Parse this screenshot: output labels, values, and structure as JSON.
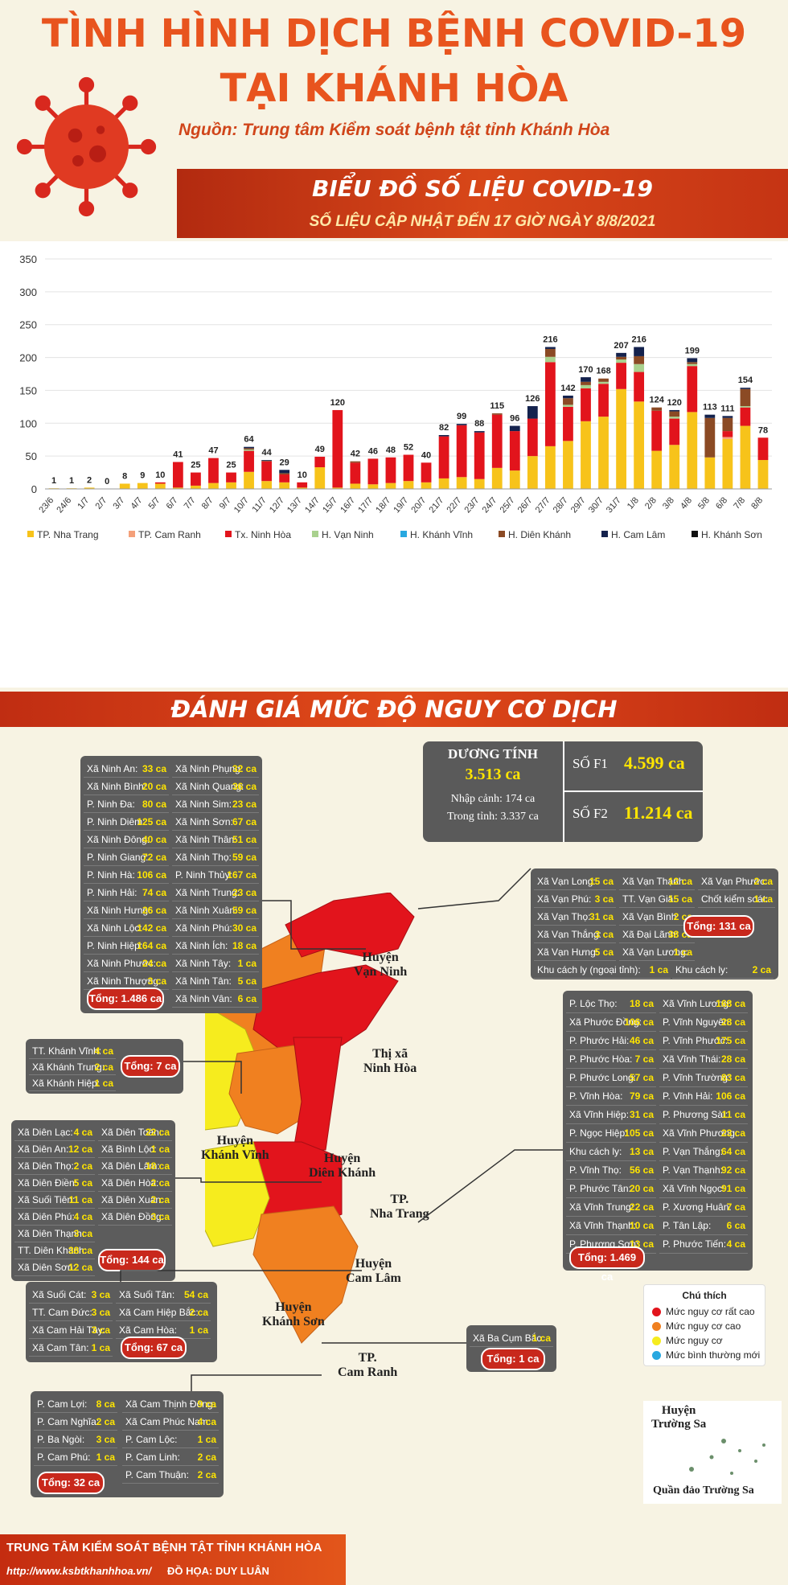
{
  "header": {
    "title_line1": "TÌNH HÌNH DỊCH BỆNH COVID-19",
    "title_line2": "TẠI KHÁNH HÒA",
    "source": "Nguồn: Trung tâm Kiểm soát bệnh tật tỉnh Khánh Hòa"
  },
  "banner": {
    "title": "BIỂU ĐỒ SỐ LIỆU COVID-19",
    "subtitle": "SỐ LIỆU CẬP NHẬT ĐẾN 17 GIỜ NGÀY 8/8/2021"
  },
  "chart_data": {
    "type": "bar",
    "stacked": true,
    "ylim": [
      0,
      350
    ],
    "yticks": [
      0,
      50,
      100,
      150,
      200,
      250,
      300,
      350
    ],
    "grid": true,
    "legend_position": "bottom",
    "categories": [
      "23/6",
      "24/6",
      "1/7",
      "2/7",
      "3/7",
      "4/7",
      "5/7",
      "6/7",
      "7/7",
      "8/7",
      "9/7",
      "10/7",
      "11/7",
      "12/7",
      "13/7",
      "14/7",
      "15/7",
      "16/7",
      "17/7",
      "18/7",
      "19/7",
      "20/7",
      "21/7",
      "22/7",
      "23/7",
      "24/7",
      "25/7",
      "26/7",
      "27/7",
      "28/7",
      "29/7",
      "30/7",
      "31/7",
      "1/8",
      "2/8",
      "3/8",
      "4/8",
      "5/8",
      "6/8",
      "7/8",
      "8/8"
    ],
    "totals": [
      1,
      1,
      2,
      0,
      8,
      9,
      10,
      41,
      25,
      47,
      25,
      64,
      44,
      29,
      10,
      49,
      120,
      42,
      46,
      48,
      52,
      40,
      82,
      99,
      88,
      115,
      96,
      126,
      216,
      142,
      170,
      168,
      207,
      216,
      124,
      120,
      199,
      113,
      111,
      154,
      78
    ],
    "series": [
      {
        "name": "TP. Nha Trang",
        "color": "#f7c31a",
        "values": [
          1,
          1,
          2,
          0,
          8,
          9,
          8,
          2,
          5,
          9,
          10,
          26,
          12,
          10,
          2,
          33,
          2,
          8,
          7,
          9,
          12,
          10,
          16,
          18,
          15,
          32,
          28,
          50,
          65,
          73,
          103,
          110,
          152,
          133,
          58,
          67,
          117,
          48,
          76,
          96,
          44
        ]
      },
      {
        "name": "TP. Cam Ranh",
        "color": "#f4a07a",
        "values": [
          0,
          0,
          0,
          0,
          0,
          0,
          0,
          0,
          0,
          0,
          0,
          0,
          0,
          0,
          0,
          0,
          0,
          0,
          0,
          0,
          0,
          0,
          0,
          0,
          0,
          0,
          0,
          0,
          0,
          0,
          0,
          0,
          0,
          0,
          0,
          0,
          0,
          0,
          3,
          0,
          0
        ]
      },
      {
        "name": "Tx. Ninh Hòa",
        "color": "#e2141c",
        "values": [
          0,
          0,
          0,
          0,
          0,
          0,
          2,
          39,
          20,
          38,
          15,
          32,
          30,
          12,
          8,
          16,
          118,
          32,
          39,
          39,
          40,
          30,
          64,
          79,
          71,
          81,
          60,
          57,
          128,
          52,
          50,
          50,
          40,
          45,
          61,
          40,
          70,
          0,
          9,
          28,
          34
        ]
      },
      {
        "name": "H. Vạn Ninh",
        "color": "#a9d18e",
        "values": [
          0,
          0,
          0,
          0,
          0,
          0,
          0,
          0,
          0,
          0,
          0,
          2,
          0,
          0,
          0,
          0,
          0,
          0,
          0,
          0,
          0,
          0,
          0,
          0,
          0,
          0,
          0,
          0,
          8,
          3,
          5,
          3,
          5,
          12,
          0,
          3,
          3,
          0,
          0,
          2,
          0
        ]
      },
      {
        "name": "H. Khánh Vĩnh",
        "color": "#28a8e0",
        "values": [
          0,
          0,
          0,
          0,
          0,
          0,
          0,
          0,
          0,
          0,
          0,
          0,
          0,
          0,
          0,
          0,
          0,
          0,
          0,
          0,
          0,
          0,
          0,
          0,
          0,
          0,
          0,
          0,
          0,
          0,
          0,
          0,
          0,
          0,
          0,
          0,
          0,
          0,
          0,
          0,
          0
        ]
      },
      {
        "name": "H. Diên Khánh",
        "color": "#8b4a24",
        "values": [
          0,
          0,
          0,
          0,
          0,
          0,
          0,
          0,
          0,
          0,
          0,
          2,
          1,
          2,
          0,
          0,
          0,
          2,
          0,
          0,
          0,
          0,
          0,
          0,
          0,
          2,
          0,
          0,
          12,
          10,
          5,
          5,
          4,
          12,
          5,
          8,
          3,
          60,
          20,
          26,
          0
        ]
      },
      {
        "name": "H. Cam Lâm",
        "color": "#14224d",
        "values": [
          0,
          0,
          0,
          0,
          0,
          0,
          0,
          0,
          0,
          0,
          0,
          2,
          1,
          5,
          0,
          0,
          0,
          0,
          0,
          0,
          0,
          0,
          2,
          2,
          2,
          0,
          8,
          19,
          3,
          4,
          7,
          0,
          6,
          14,
          0,
          2,
          6,
          5,
          3,
          2,
          0
        ]
      },
      {
        "name": "H. Khánh Sơn",
        "color": "#111111",
        "values": [
          0,
          0,
          0,
          0,
          0,
          0,
          0,
          0,
          0,
          0,
          0,
          0,
          0,
          0,
          0,
          0,
          0,
          0,
          0,
          0,
          0,
          0,
          0,
          0,
          0,
          0,
          0,
          0,
          0,
          0,
          0,
          0,
          0,
          0,
          0,
          0,
          0,
          0,
          0,
          0,
          0
        ]
      }
    ]
  },
  "section2_title": "ĐÁNH GIÁ MỨC ĐỘ NGUY CƠ DỊCH",
  "stats": {
    "positive_label": "DƯƠNG TÍNH",
    "positive_value": "3.513 ca",
    "imported": "Nhập cảnh: 174 ca",
    "local": "Trong tỉnh: 3.337 ca",
    "f1_label": "SỐ F1",
    "f1_value": "4.599 ca",
    "f2_label": "SỐ F2",
    "f2_value": "11.214 ca"
  },
  "panels": {
    "ninhhoa": {
      "col1": [
        [
          "Xã Ninh An:",
          "33 ca"
        ],
        [
          "Xã Ninh Bình:",
          "20 ca"
        ],
        [
          "P. Ninh Đa:",
          "80 ca"
        ],
        [
          "P. Ninh Diêm:",
          "125 ca"
        ],
        [
          "Xã Ninh Đông:",
          "40 ca"
        ],
        [
          "P. Ninh Giang:",
          "72 ca"
        ],
        [
          "P. Ninh Hà:",
          "106 ca"
        ],
        [
          "P. Ninh Hải:",
          "74 ca"
        ],
        [
          "Xã Ninh Hưng:",
          "26 ca"
        ],
        [
          "Xã Ninh Lộc:",
          "142 ca"
        ],
        [
          "P. Ninh Hiệp:",
          "164 ca"
        ],
        [
          "Xã Ninh Phước:",
          "24 ca"
        ],
        [
          "Xã Ninh Thượng:",
          "3 ca"
        ]
      ],
      "col2": [
        [
          "Xã Ninh Phụng:",
          "32 ca"
        ],
        [
          "Xã Ninh Quang:",
          "36 ca"
        ],
        [
          "Xã Ninh Sim:",
          "23 ca"
        ],
        [
          "Xã Ninh Sơn:",
          "67 ca"
        ],
        [
          "Xã Ninh Thân:",
          "51 ca"
        ],
        [
          "Xã Ninh Thọ:",
          "59 ca"
        ],
        [
          "P. Ninh Thủy:",
          "167 ca"
        ],
        [
          "Xã Ninh Trung:",
          "23 ca"
        ],
        [
          "Xã Ninh Xuân:",
          "59 ca"
        ],
        [
          "Xã Ninh Phú:",
          "30 ca"
        ],
        [
          "Xã Ninh Ích:",
          "18 ca"
        ],
        [
          "Xã Ninh Tây:",
          "1 ca"
        ],
        [
          "Xã Ninh Tân:",
          "5 ca"
        ],
        [
          "Xã Ninh Vân:",
          "6 ca"
        ]
      ],
      "total": "Tổng: 1.486 ca"
    },
    "vanninh": {
      "col1": [
        [
          "Xã Vạn Long:",
          "15 ca"
        ],
        [
          "Xã Vạn Phú:",
          "3 ca"
        ],
        [
          "Xã Vạn Thọ:",
          "31 ca"
        ],
        [
          "Xã Vạn Thắng:",
          "3 ca"
        ],
        [
          "Xã Vạn Hưng:",
          "5 ca"
        ]
      ],
      "col2": [
        [
          "Xã Vạn Thạnh:",
          "12 ca"
        ],
        [
          "TT. Vạn Giã:",
          "15 ca"
        ],
        [
          "Xã Vạn Bình:",
          "2 ca"
        ],
        [
          "Xã Đại Lãnh:",
          "38 ca"
        ],
        [
          "Xã Vạn Lương:",
          "1 ca"
        ]
      ],
      "col3": [
        [
          "Xã Vạn Phước:",
          "2 ca"
        ],
        [
          "Chốt kiểm soát:",
          "1 ca"
        ]
      ],
      "extra1": [
        "Khu cách ly (ngoại tỉnh):",
        "1 ca"
      ],
      "extra2": [
        "Khu cách ly:",
        "2 ca"
      ],
      "total": "Tổng: 131 ca"
    },
    "khanhvinh": {
      "col1": [
        [
          "TT. Khánh Vĩnh:",
          "4 ca"
        ],
        [
          "Xã Khánh Trung:",
          "2 ca"
        ],
        [
          "Xã Khánh Hiệp:",
          "1 ca"
        ]
      ],
      "total": "Tổng: 7 ca"
    },
    "dienkhanh": {
      "col1": [
        [
          "Xã Diên Lạc:",
          "4 ca"
        ],
        [
          "Xã Diên An:",
          "12 ca"
        ],
        [
          "Xã Diên Thọ:",
          "2 ca"
        ],
        [
          "Xã Diên Điền:",
          "5 ca"
        ],
        [
          "Xã Suối Tiên:",
          "11 ca"
        ],
        [
          "Xã Diên Phú:",
          "4 ca"
        ],
        [
          "Xã Diên Thạnh:",
          "3 ca"
        ],
        [
          "TT. Diên Khánh:",
          "38 ca"
        ],
        [
          "Xã Diên Sơn:",
          "12 ca"
        ]
      ],
      "col2": [
        [
          "Xã Diên Toàn:",
          "22 ca"
        ],
        [
          "Xã Bình Lộc:",
          "1 ca"
        ],
        [
          "Xã Diên Lâm:",
          "18 ca"
        ],
        [
          "Xã Diên Hòa:",
          "2 ca"
        ],
        [
          "Xã Diên Xuân:",
          "2 ca"
        ],
        [
          "Xã Diên Đồng:",
          "3 ca"
        ]
      ],
      "total": "Tổng: 144 ca"
    },
    "nhatrang": {
      "col1": [
        [
          "P. Lộc Thọ:",
          "18 ca"
        ],
        [
          "Xã Phước Đồng:",
          "106 ca"
        ],
        [
          "P. Phước Hải:",
          "46 ca"
        ],
        [
          "P. Phước Hòa:",
          "7 ca"
        ],
        [
          "P. Phước Long:",
          "57 ca"
        ],
        [
          "P. Vĩnh Hòa:",
          "79 ca"
        ],
        [
          "Xã Vĩnh Hiệp:",
          "31 ca"
        ],
        [
          "P. Ngọc Hiệp:",
          "105 ca"
        ],
        [
          "Khu cách ly:",
          "13 ca"
        ],
        [
          "P. Vĩnh Thọ:",
          "56 ca"
        ],
        [
          "P. Phước Tân:",
          "20 ca"
        ],
        [
          "Xã Vĩnh Trung:",
          "22 ca"
        ],
        [
          "Xã Vĩnh Thạnh:",
          "10 ca"
        ],
        [
          "P. Phương Sơn:",
          "13 ca"
        ]
      ],
      "col2": [
        [
          "Xã Vĩnh Lương:",
          "168 ca"
        ],
        [
          "P. Vĩnh Nguyên:",
          "28 ca"
        ],
        [
          "P. Vĩnh Phước:",
          "175 ca"
        ],
        [
          "Xã Vĩnh Thái:",
          "28 ca"
        ],
        [
          "P. Vĩnh Trường:",
          "83 ca"
        ],
        [
          "P. Vĩnh Hải:",
          "106 ca"
        ],
        [
          "P. Phương Sài:",
          "11 ca"
        ],
        [
          "Xã Vĩnh Phương:",
          "23 ca"
        ],
        [
          "P. Vạn Thắng:",
          "64 ca"
        ],
        [
          "P. Vạn Thạnh:",
          "92 ca"
        ],
        [
          "Xã Vĩnh Ngọc:",
          "91 ca"
        ],
        [
          "P. Xương Huân:",
          "7 ca"
        ],
        [
          "P. Tân Lập:",
          "6 ca"
        ],
        [
          "P. Phước Tiến:",
          "4 ca"
        ]
      ],
      "total": "Tổng: 1.469 ca"
    },
    "camlam": {
      "col1": [
        [
          "Xã Suối Cát:",
          "3 ca"
        ],
        [
          "TT. Cam Đức:",
          "3 ca"
        ],
        [
          "Xã Cam Hải Tây:",
          "3 ca"
        ],
        [
          "Xã Cam Tân:",
          "1 ca"
        ]
      ],
      "col2": [
        [
          "Xã Suối Tân:",
          "54 ca"
        ],
        [
          "Xã Cam Hiệp Bắc:",
          "2 ca"
        ],
        [
          "Xã Cam Hòa:",
          "1 ca"
        ]
      ],
      "total": "Tổng: 67 ca"
    },
    "khanhson": {
      "col1": [
        [
          "Xã Ba Cụm Bắc:",
          "1 ca"
        ]
      ],
      "total": "Tổng: 1 ca"
    },
    "camranh": {
      "col1": [
        [
          "P. Cam Lợi:",
          "8 ca"
        ],
        [
          "P. Cam Nghĩa:",
          "2 ca"
        ],
        [
          "P. Ba Ngòi:",
          "3 ca"
        ],
        [
          "P. Cam Phú:",
          "1 ca"
        ]
      ],
      "col2": [
        [
          "Xã Cam Thịnh Đông:",
          "9 ca"
        ],
        [
          "Xã Cam Phúc Nam:",
          "4 ca"
        ],
        [
          "P. Cam Lộc:",
          "1 ca"
        ],
        [
          "P. Cam Linh:",
          "2 ca"
        ],
        [
          "P. Cam Thuận:",
          "2 ca"
        ]
      ],
      "total": "Tổng: 32 ca"
    }
  },
  "map_labels": {
    "vanninh": [
      "Huyện",
      "Vạn Ninh"
    ],
    "ninhhoa": [
      "Thị xã",
      "Ninh Hòa"
    ],
    "khanhvinh": [
      "Huyện",
      "Khánh Vĩnh"
    ],
    "dienkhanh": [
      "Huyện",
      "Diên Khánh"
    ],
    "nhatrang": [
      "TP.",
      "Nha Trang"
    ],
    "camlam": [
      "Huyện",
      "Cam Lâm"
    ],
    "khanhson": [
      "Huyện",
      "Khánh Sơn"
    ],
    "camranh": [
      "TP.",
      "Cam Ranh"
    ],
    "truongsa": [
      "Huyện",
      "Trường Sa"
    ],
    "quandao": "Quần đảo Trường Sa"
  },
  "legend": {
    "title": "Chú thích",
    "items": [
      {
        "label": "Mức nguy cơ rất cao",
        "color": "#e2141c"
      },
      {
        "label": "Mức nguy cơ cao",
        "color": "#f08020"
      },
      {
        "label": "Mức nguy cơ",
        "color": "#f6ec1e"
      },
      {
        "label": "Mức bình thường mới",
        "color": "#28a8e0"
      }
    ]
  },
  "map_colors": {
    "very_high": "#e2141c",
    "high": "#f08020",
    "medium": "#f6ec1e"
  },
  "footer": {
    "org": "TRUNG TÂM KIỂM SOÁT BỆNH TẬT TỈNH KHÁNH HÒA",
    "url": "http://www.ksbtkhanhhoa.vn/",
    "credit": "ĐỒ HỌA: DUY LUÂN"
  }
}
